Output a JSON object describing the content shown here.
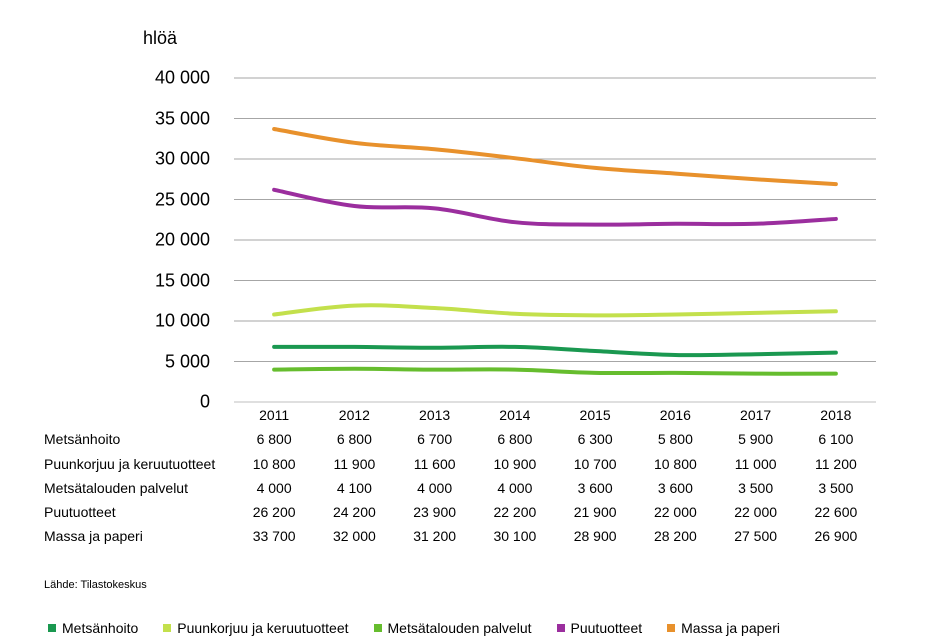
{
  "chart_data": {
    "type": "line",
    "ylabel": "hlöä",
    "ylim": [
      0,
      40000
    ],
    "y_ticks": [
      0,
      5000,
      10000,
      15000,
      20000,
      25000,
      30000,
      35000,
      40000
    ],
    "y_tick_labels": [
      "0",
      "5 000",
      "10 000",
      "15 000",
      "20 000",
      "25 000",
      "30 000",
      "35 000",
      "40 000"
    ],
    "grid": true,
    "legend_position": "bottom",
    "x": [
      "2011",
      "2012",
      "2013",
      "2014",
      "2015",
      "2016",
      "2017",
      "2018"
    ],
    "series": [
      {
        "name": "Metsänhoito",
        "color": "#1a9850",
        "values": [
          6800,
          6800,
          6700,
          6800,
          6300,
          5800,
          5900,
          6100
        ],
        "labels": [
          "6 800",
          "6 800",
          "6 700",
          "6 800",
          "6 300",
          "5 800",
          "5 900",
          "6 100"
        ]
      },
      {
        "name": "Puunkorjuu ja keruutuotteet",
        "color": "#c3e04c",
        "values": [
          10800,
          11900,
          11600,
          10900,
          10700,
          10800,
          11000,
          11200
        ],
        "labels": [
          "10 800",
          "11 900",
          "11 600",
          "10 900",
          "10 700",
          "10 800",
          "11 000",
          "11 200"
        ]
      },
      {
        "name": "Metsätalouden palvelut",
        "color": "#66bd2e",
        "values": [
          4000,
          4100,
          4000,
          4000,
          3600,
          3600,
          3500,
          3500
        ],
        "labels": [
          "4 000",
          "4 100",
          "4 000",
          "4 000",
          "3 600",
          "3 600",
          "3 500",
          "3 500"
        ]
      },
      {
        "name": "Puutuotteet",
        "color": "#9b2e9e",
        "values": [
          26200,
          24200,
          23900,
          22200,
          21900,
          22000,
          22000,
          22600
        ],
        "labels": [
          "26 200",
          "24 200",
          "23 900",
          "22 200",
          "21 900",
          "22 000",
          "22 000",
          "22 600"
        ]
      },
      {
        "name": "Massa ja paperi",
        "color": "#e8912c",
        "values": [
          33700,
          32000,
          31200,
          30100,
          28900,
          28200,
          27500,
          26900
        ],
        "labels": [
          "33 700",
          "32 000",
          "31 200",
          "30 100",
          "28 900",
          "28 200",
          "27 500",
          "26 900"
        ]
      }
    ],
    "source": "Lähde: Tilastokeskus"
  }
}
